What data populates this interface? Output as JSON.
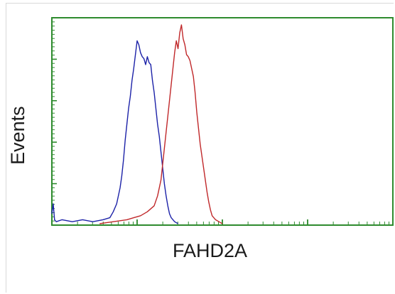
{
  "chart_data": {
    "type": "line",
    "title": "",
    "xlabel": "FAHD2A",
    "ylabel": "Events",
    "xscale": "log",
    "colors": {
      "frame": "#2e8b2e",
      "series_blue": "#1c22a8",
      "series_red": "#c0282a"
    },
    "series": [
      {
        "color": "#1c22a8",
        "points": [
          [
            0.0,
            0.05
          ],
          [
            0.004,
            0.1
          ],
          [
            0.008,
            0.02
          ],
          [
            0.013,
            0.01
          ],
          [
            0.03,
            0.02
          ],
          [
            0.06,
            0.01
          ],
          [
            0.09,
            0.02
          ],
          [
            0.12,
            0.01
          ],
          [
            0.15,
            0.02
          ],
          [
            0.17,
            0.03
          ],
          [
            0.18,
            0.06
          ],
          [
            0.19,
            0.1
          ],
          [
            0.2,
            0.18
          ],
          [
            0.205,
            0.24
          ],
          [
            0.21,
            0.32
          ],
          [
            0.215,
            0.42
          ],
          [
            0.22,
            0.5
          ],
          [
            0.225,
            0.58
          ],
          [
            0.23,
            0.64
          ],
          [
            0.235,
            0.72
          ],
          [
            0.24,
            0.78
          ],
          [
            0.245,
            0.85
          ],
          [
            0.25,
            0.92
          ],
          [
            0.255,
            0.9
          ],
          [
            0.26,
            0.86
          ],
          [
            0.265,
            0.84
          ],
          [
            0.27,
            0.83
          ],
          [
            0.275,
            0.8
          ],
          [
            0.28,
            0.84
          ],
          [
            0.285,
            0.81
          ],
          [
            0.29,
            0.8
          ],
          [
            0.295,
            0.72
          ],
          [
            0.3,
            0.66
          ],
          [
            0.305,
            0.58
          ],
          [
            0.31,
            0.5
          ],
          [
            0.315,
            0.44
          ],
          [
            0.32,
            0.36
          ],
          [
            0.325,
            0.28
          ],
          [
            0.33,
            0.2
          ],
          [
            0.335,
            0.14
          ],
          [
            0.34,
            0.09
          ],
          [
            0.345,
            0.05
          ],
          [
            0.35,
            0.03
          ],
          [
            0.36,
            0.01
          ],
          [
            0.37,
            0.0
          ]
        ]
      },
      {
        "color": "#c0282a",
        "points": [
          [
            0.14,
            0.0
          ],
          [
            0.16,
            0.005
          ],
          [
            0.18,
            0.01
          ],
          [
            0.2,
            0.015
          ],
          [
            0.22,
            0.02
          ],
          [
            0.24,
            0.03
          ],
          [
            0.26,
            0.04
          ],
          [
            0.28,
            0.06
          ],
          [
            0.3,
            0.09
          ],
          [
            0.31,
            0.14
          ],
          [
            0.32,
            0.22
          ],
          [
            0.325,
            0.3
          ],
          [
            0.33,
            0.38
          ],
          [
            0.335,
            0.46
          ],
          [
            0.34,
            0.54
          ],
          [
            0.345,
            0.62
          ],
          [
            0.35,
            0.7
          ],
          [
            0.355,
            0.78
          ],
          [
            0.36,
            0.86
          ],
          [
            0.365,
            0.92
          ],
          [
            0.37,
            0.88
          ],
          [
            0.375,
            0.96
          ],
          [
            0.38,
            1.0
          ],
          [
            0.385,
            0.93
          ],
          [
            0.39,
            0.9
          ],
          [
            0.395,
            0.85
          ],
          [
            0.4,
            0.84
          ],
          [
            0.405,
            0.82
          ],
          [
            0.41,
            0.78
          ],
          [
            0.415,
            0.74
          ],
          [
            0.42,
            0.66
          ],
          [
            0.425,
            0.56
          ],
          [
            0.43,
            0.48
          ],
          [
            0.435,
            0.4
          ],
          [
            0.44,
            0.34
          ],
          [
            0.445,
            0.28
          ],
          [
            0.45,
            0.22
          ],
          [
            0.455,
            0.16
          ],
          [
            0.46,
            0.11
          ],
          [
            0.465,
            0.07
          ],
          [
            0.47,
            0.04
          ],
          [
            0.48,
            0.02
          ],
          [
            0.49,
            0.01
          ],
          [
            0.5,
            0.0
          ]
        ]
      }
    ],
    "y_major_ticks": 5,
    "x_decades": 4
  }
}
